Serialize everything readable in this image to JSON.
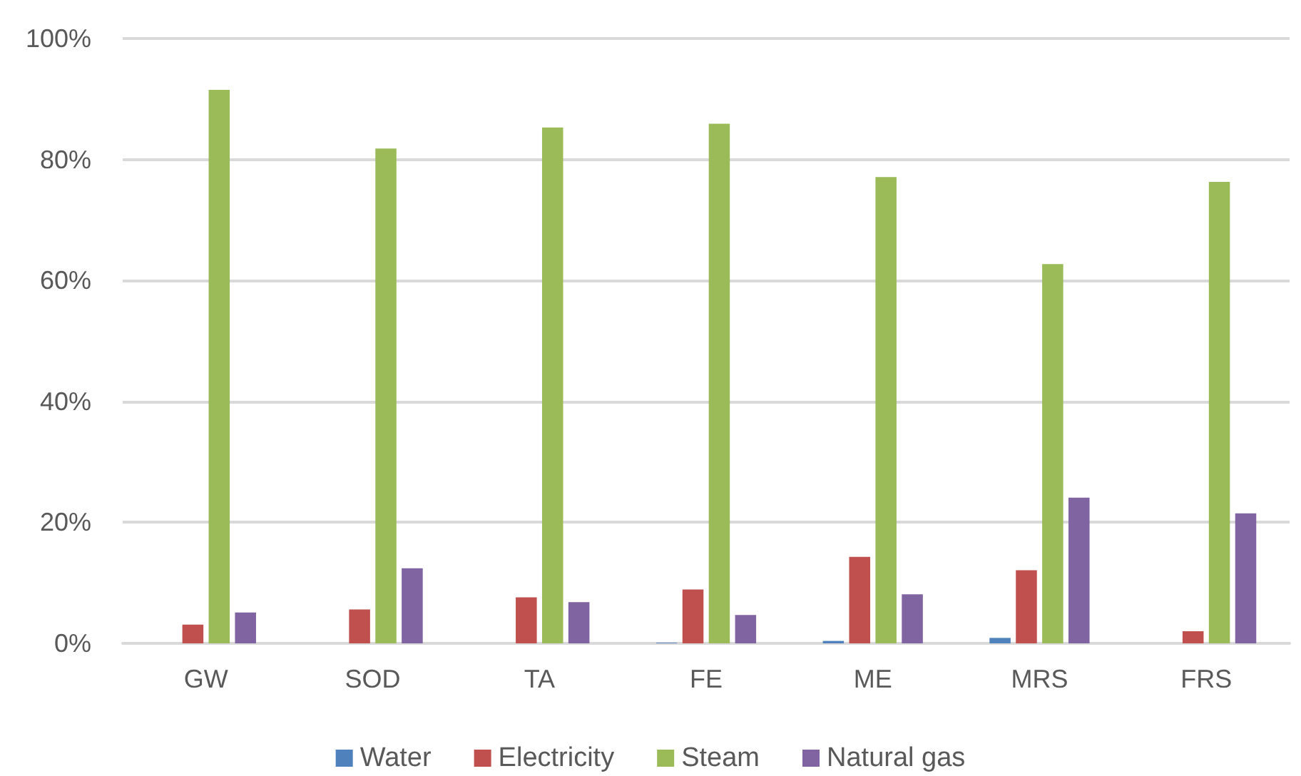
{
  "chart_data": {
    "type": "bar",
    "categories": [
      "GW",
      "SOD",
      "TA",
      "FE",
      "ME",
      "MRS",
      "FRS"
    ],
    "series": [
      {
        "name": "Water",
        "color": "#4f81bd",
        "values": [
          0,
          0,
          0,
          0.1,
          0.4,
          0.9,
          0
        ]
      },
      {
        "name": "Electricity",
        "color": "#c0504d",
        "values": [
          3.1,
          5.6,
          7.6,
          8.9,
          14.3,
          12.1,
          2.0
        ]
      },
      {
        "name": "Steam",
        "color": "#9bbb59",
        "values": [
          91.5,
          81.8,
          85.3,
          85.9,
          77.1,
          62.7,
          76.3
        ]
      },
      {
        "name": "Natural gas",
        "color": "#8064a2",
        "values": [
          5.1,
          12.4,
          6.8,
          4.7,
          8.1,
          24.1,
          21.5
        ]
      }
    ],
    "ylim": [
      0,
      100
    ],
    "yticks": [
      {
        "value": 0,
        "label": "0%"
      },
      {
        "value": 20,
        "label": "20%"
      },
      {
        "value": 40,
        "label": "40%"
      },
      {
        "value": 60,
        "label": "60%"
      },
      {
        "value": 80,
        "label": "80%"
      },
      {
        "value": 100,
        "label": "100%"
      }
    ],
    "grid": "y",
    "legend": "bottom"
  }
}
